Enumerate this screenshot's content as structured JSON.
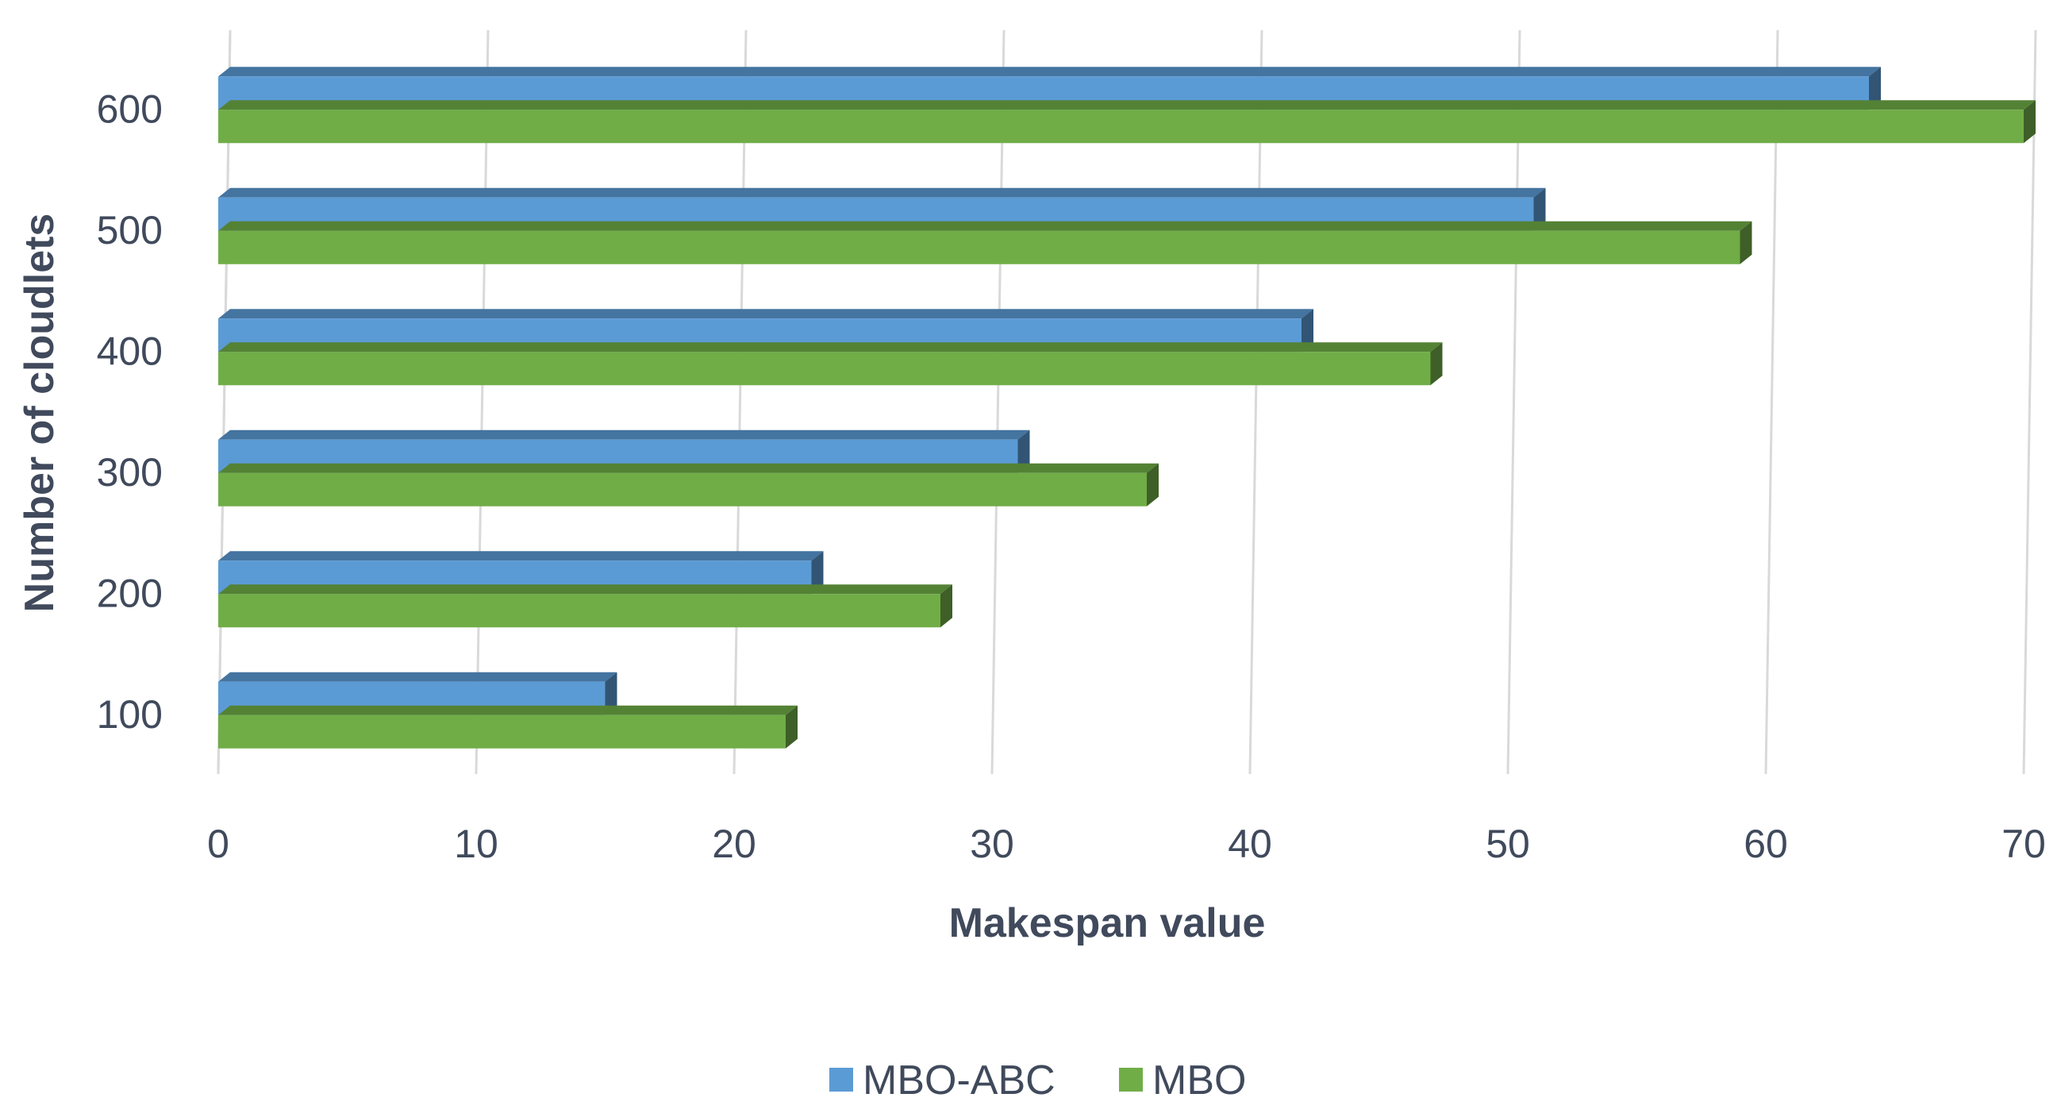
{
  "chart_data": {
    "type": "bar",
    "orientation": "horizontal",
    "categories": [
      "100",
      "200",
      "300",
      "400",
      "500",
      "600"
    ],
    "series": [
      {
        "name": "MBO-ABC",
        "values": [
          15,
          23,
          31,
          42,
          51,
          64
        ],
        "color": "#5b9bd5"
      },
      {
        "name": "MBO",
        "values": [
          22,
          28,
          36,
          47,
          59,
          70
        ],
        "color": "#70ad47"
      }
    ],
    "xlabel": "Makespan value",
    "ylabel": "Number of cloudlets",
    "xlim": [
      0,
      70
    ],
    "xticks": [
      "0",
      "10",
      "20",
      "30",
      "40",
      "50",
      "60",
      "70"
    ],
    "grid": true,
    "legend_position": "bottom",
    "style": "3d"
  }
}
